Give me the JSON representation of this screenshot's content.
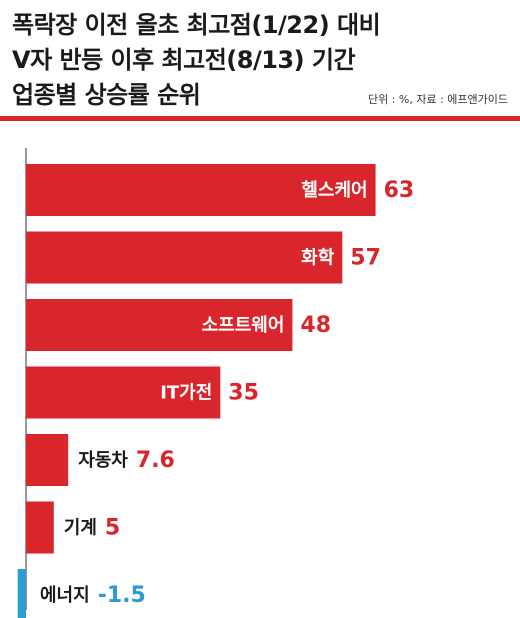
{
  "title_lines": [
    "폭락장 이전 올초 최고점(1/22) 대비",
    "V자 반등 이후 최고전(8/13) 기간",
    "업종별 상승률 순위"
  ],
  "unit_note": "단위 : %, 자료 : 에프앤가이드",
  "colors": {
    "positive": "#d9262c",
    "negative": "#2d9ad6",
    "label_on_bar": "#ffffff",
    "label_outside": "#1a1a1a",
    "axis": "#333333"
  },
  "chart_data": {
    "type": "bar",
    "orientation": "horizontal",
    "title": "폭락장 이전 올초 최고점(1/22) 대비 V자 반등 이후 최고전(8/13) 기간 업종별 상승률 순위",
    "categories": [
      "헬스케어",
      "화학",
      "소프트웨어",
      "IT가전",
      "자동차",
      "기계",
      "에너지"
    ],
    "values": [
      63,
      57,
      48,
      35,
      7.6,
      5,
      -1.5
    ],
    "value_labels": [
      "63",
      "57",
      "48",
      "35",
      "7.6",
      "5",
      "-1.5"
    ],
    "label_inside": [
      true,
      true,
      true,
      true,
      false,
      false,
      false
    ],
    "unit": "%",
    "xlim": [
      -1.5,
      63
    ],
    "grid": false,
    "legend": "none"
  }
}
